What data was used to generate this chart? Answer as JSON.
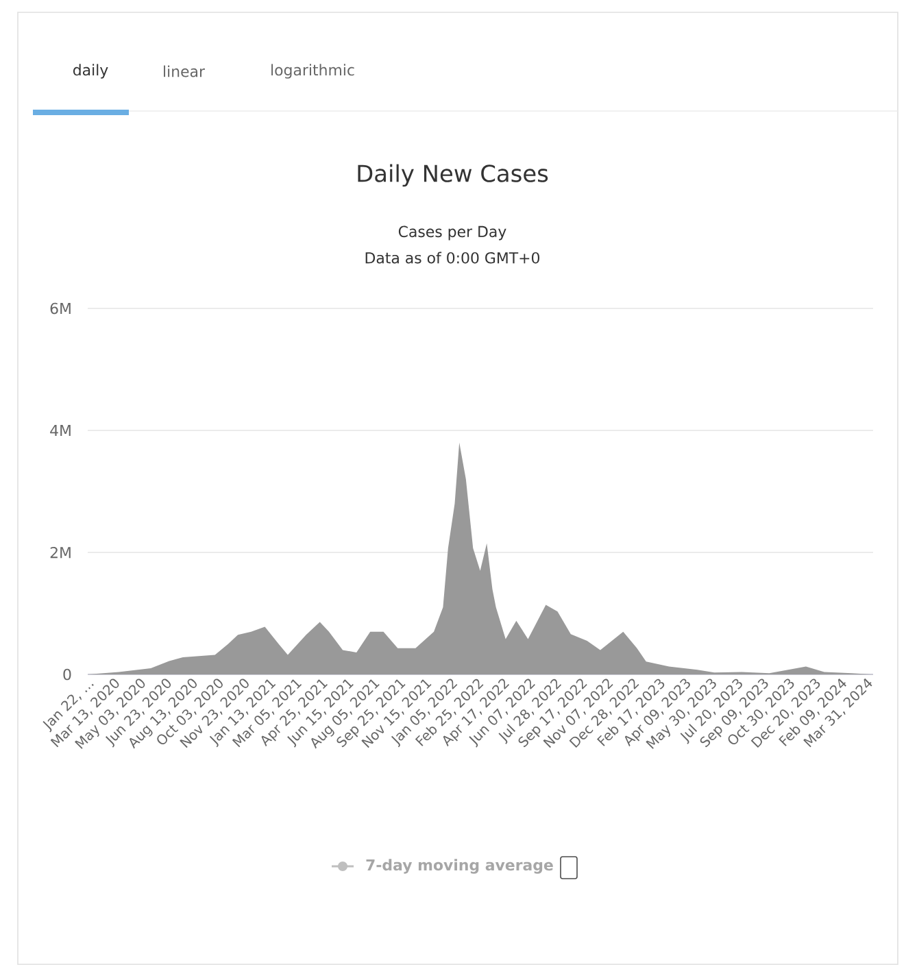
{
  "chart_data": {
    "type": "area",
    "title": "Daily New Cases",
    "subtitle": "Cases per Day",
    "annotations": [
      "daily",
      "linear",
      "logarithmic",
      "Data as of 0:00 GMT+0",
      "7-day moving average"
    ],
    "x": [
      "2020-01-22",
      "2020-03-23",
      "2020-05-25",
      "2020-06-30",
      "2020-07-27",
      "2020-09-28",
      "2020-10-24",
      "2020-11-12",
      "2020-12-08",
      "2021-01-04",
      "2021-01-31",
      "2021-02-18",
      "2021-03-26",
      "2021-04-22",
      "2021-05-10",
      "2021-06-06",
      "2021-07-03",
      "2021-07-30",
      "2021-08-25",
      "2021-09-22",
      "2021-10-27",
      "2021-12-02",
      "2021-12-20",
      "2021-12-30",
      "2022-01-12",
      "2022-01-21",
      "2022-02-03",
      "2022-02-17",
      "2022-03-03",
      "2022-03-16",
      "2022-03-27",
      "2022-04-03",
      "2022-04-22",
      "2022-05-13",
      "2022-06-05",
      "2022-07-10",
      "2022-08-02",
      "2022-08-28",
      "2022-09-29",
      "2022-10-25",
      "2022-12-09",
      "2023-01-05",
      "2023-01-23",
      "2023-03-09",
      "2023-05-01",
      "2023-06-06",
      "2023-07-30",
      "2023-09-22",
      "2023-12-03",
      "2024-01-08",
      "2024-03-02",
      "2024-04-13"
    ],
    "values": [
      0,
      40000,
      100000,
      220000,
      280000,
      320000,
      500000,
      650000,
      700000,
      780000,
      500000,
      320000,
      650000,
      860000,
      700000,
      400000,
      360000,
      700000,
      700000,
      430000,
      430000,
      700000,
      1100000,
      2070000,
      2800000,
      3800000,
      3200000,
      2070000,
      1700000,
      2150000,
      1400000,
      1100000,
      580000,
      880000,
      580000,
      1140000,
      1030000,
      660000,
      550000,
      400000,
      700000,
      430000,
      210000,
      130000,
      80000,
      30000,
      40000,
      20000,
      130000,
      40000,
      20000,
      0
    ],
    "color": "#999999",
    "xlim": [
      "2020-01-22",
      "2024-04-13"
    ],
    "xticks": [
      {
        "value": "2020-01-22",
        "label": "Jan 22, …"
      },
      {
        "value": "2020-03-13",
        "label": "Mar 13, 2020"
      },
      {
        "value": "2020-05-03",
        "label": "May 03, 2020"
      },
      {
        "value": "2020-06-23",
        "label": "Jun 23, 2020"
      },
      {
        "value": "2020-08-13",
        "label": "Aug 13, 2020"
      },
      {
        "value": "2020-10-03",
        "label": "Oct 03, 2020"
      },
      {
        "value": "2020-11-23",
        "label": "Nov 23, 2020"
      },
      {
        "value": "2021-01-13",
        "label": "Jan 13, 2021"
      },
      {
        "value": "2021-03-05",
        "label": "Mar 05, 2021"
      },
      {
        "value": "2021-04-25",
        "label": "Apr 25, 2021"
      },
      {
        "value": "2021-06-15",
        "label": "Jun 15, 2021"
      },
      {
        "value": "2021-08-05",
        "label": "Aug 05, 2021"
      },
      {
        "value": "2021-09-25",
        "label": "Sep 25, 2021"
      },
      {
        "value": "2021-11-15",
        "label": "Nov 15, 2021"
      },
      {
        "value": "2022-01-05",
        "label": "Jan 05, 2022"
      },
      {
        "value": "2022-02-25",
        "label": "Feb 25, 2022"
      },
      {
        "value": "2022-04-17",
        "label": "Apr 17, 2022"
      },
      {
        "value": "2022-06-07",
        "label": "Jun 07, 2022"
      },
      {
        "value": "2022-07-28",
        "label": "Jul 28, 2022"
      },
      {
        "value": "2022-09-17",
        "label": "Sep 17, 2022"
      },
      {
        "value": "2022-11-07",
        "label": "Nov 07, 2022"
      },
      {
        "value": "2022-12-28",
        "label": "Dec 28, 2022"
      },
      {
        "value": "2023-02-17",
        "label": "Feb 17, 2023"
      },
      {
        "value": "2023-04-09",
        "label": "Apr 09, 2023"
      },
      {
        "value": "2023-05-30",
        "label": "May 30, 2023"
      },
      {
        "value": "2023-07-20",
        "label": "Jul 20, 2023"
      },
      {
        "value": "2023-09-09",
        "label": "Sep 09, 2023"
      },
      {
        "value": "2023-10-30",
        "label": "Oct 30, 2023"
      },
      {
        "value": "2023-12-20",
        "label": "Dec 20, 2023"
      },
      {
        "value": "2024-02-09",
        "label": "Feb 09, 2024"
      },
      {
        "value": "2024-03-31",
        "label": "Mar 31, 2024"
      }
    ],
    "ylim": [
      0,
      6000000
    ],
    "yticks": [
      0,
      {
        "value": 2000000,
        "label": "2M"
      },
      {
        "value": 4000000,
        "label": "4M"
      },
      {
        "value": 6000000,
        "label": "6M"
      }
    ],
    "grid": "y"
  }
}
